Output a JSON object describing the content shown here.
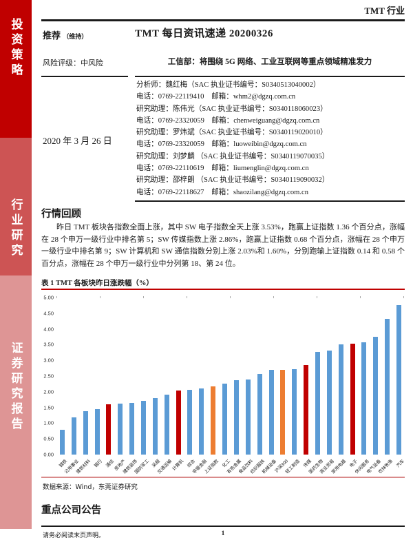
{
  "page": {
    "doc_type": "TMT 行业",
    "page_number": "1",
    "disclaimer": "请务必阅读末页声明。"
  },
  "sidebar": {
    "items": [
      {
        "label": "投资策略"
      },
      {
        "label": "行业研究"
      },
      {
        "label": "证券研究报告"
      }
    ],
    "colors": {
      "top": "#c00000",
      "middle": "#cd5454",
      "bottom": "#de9595"
    }
  },
  "report": {
    "rating": "推荐",
    "rating_status": "（维持）",
    "title": "TMT 每日资讯速递 20200326",
    "risk": "风险评级：中风险",
    "headline": "工信部：将围绕 5G 网络、工业互联网等重点领域精准发力",
    "date": "2020 年 3 月 26 日",
    "analysts": [
      "分析师：魏红梅（SAC 执业证书编号：S0340513040002）",
      "电话：0769-22119410　邮箱：whm2@dgzq.com.cn",
      "研究助理：陈伟光（SAC 执业证书编号：S0340118060023）",
      "电话：0769-23320059　邮箱：chenweiguang@dgzq.com.cn",
      "研究助理：罗炜斌（SAC 执业证书编号：S0340119020010）",
      "电话：0769-23320059　邮箱：luoweibin@dgzq.com.cn",
      "研究助理：刘梦麟 （SAC 执业证书编号：S0340119070035）",
      "电话：0769-22110619　邮箱：liumenglin@dgzq.com.cn",
      "研究助理：邵梓朗 （SAC 执业证书编号：S0340119090032）",
      "电话：0769-22118627　邮箱：shaozilang@dgzq.com.cn"
    ]
  },
  "market_review": {
    "heading": "行情回顾",
    "paragraph": "昨日 TMT 板块各指数全面上涨，其中 SW 电子指数全天上涨 3.53%，跑赢上证指数 1.36 个百分点，涨幅在 28 个申万一级行业中排名第 5；SW 传媒指数上涨 2.86%，跑赢上证指数 0.68 个百分点，涨幅在 28 个申万一级行业中排名第 9；SW 计算机和 SW 通信指数分别上涨 2.03%和 1.60%，分别跑输上证指数 0.14 和 0.58 个百分点，涨幅在 28 个申万一级行业中分列第 18、第 24 位。"
  },
  "chart_data": {
    "type": "bar",
    "title": "表 1 TMT 各板块昨日涨跌幅（%）",
    "categories": [
      "钢铁",
      "公用事业",
      "建筑材料",
      "银行",
      "通信",
      "房地产",
      "建筑装饰",
      "国防军工",
      "采掘",
      "交通运输",
      "计算机",
      "综合",
      "非银金融",
      "上证指数",
      "化工",
      "有色金属",
      "食品饮料",
      "纺织服装",
      "机械设备",
      "沪深300",
      "轻工制造",
      "传媒",
      "医药生物",
      "商业贸易",
      "家用电器",
      "电子",
      "休闲服务",
      "电气设备",
      "农林牧渔",
      "汽车"
    ],
    "values": [
      0.8,
      1.18,
      1.38,
      1.45,
      1.6,
      1.62,
      1.65,
      1.72,
      1.79,
      1.91,
      2.03,
      2.07,
      2.11,
      2.17,
      2.27,
      2.36,
      2.4,
      2.56,
      2.69,
      2.7,
      2.72,
      2.86,
      3.27,
      3.31,
      3.52,
      3.53,
      3.58,
      3.75,
      4.33,
      4.75
    ],
    "bar_colors": [
      "#5b9bd5",
      "#5b9bd5",
      "#5b9bd5",
      "#5b9bd5",
      "#c00000",
      "#5b9bd5",
      "#5b9bd5",
      "#5b9bd5",
      "#5b9bd5",
      "#5b9bd5",
      "#c00000",
      "#5b9bd5",
      "#5b9bd5",
      "#ed7d31",
      "#5b9bd5",
      "#5b9bd5",
      "#5b9bd5",
      "#5b9bd5",
      "#5b9bd5",
      "#ed7d31",
      "#5b9bd5",
      "#c00000",
      "#5b9bd5",
      "#5b9bd5",
      "#5b9bd5",
      "#c00000",
      "#5b9bd5",
      "#5b9bd5",
      "#5b9bd5",
      "#5b9bd5"
    ],
    "xlabel": "",
    "ylabel": "",
    "ylim": [
      0,
      5
    ],
    "ytick_step": 0.5,
    "grid": false,
    "legend": "none",
    "source": "数据来源：Wind，东莞证券研究"
  },
  "announcements": {
    "heading": "重点公司公告"
  }
}
